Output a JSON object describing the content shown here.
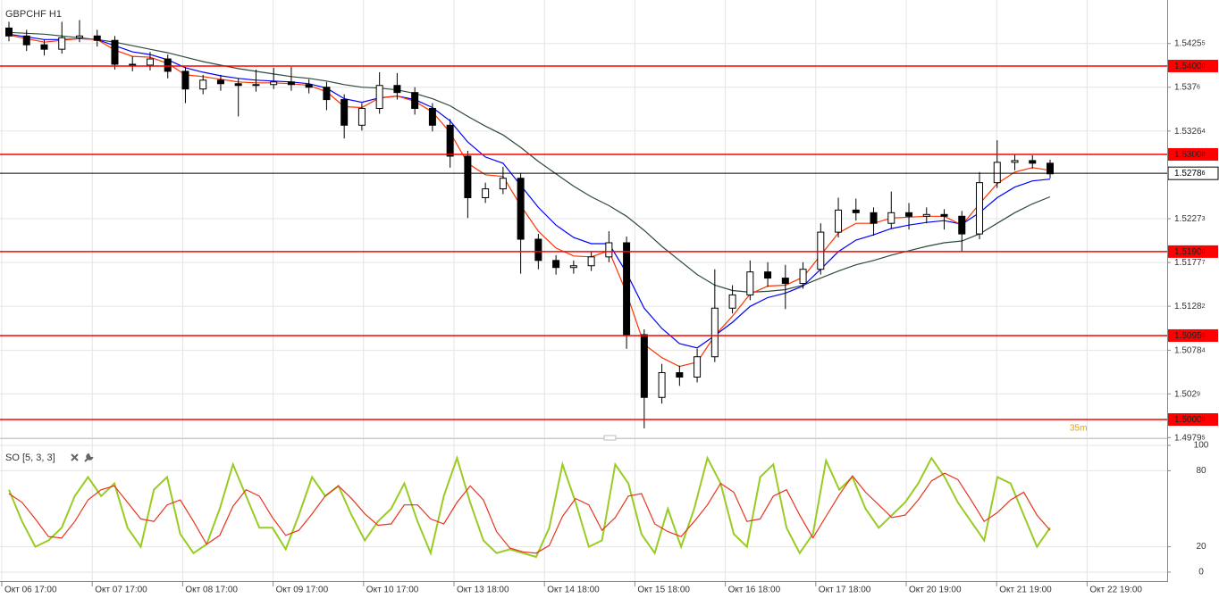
{
  "chart_data": [
    {
      "type": "candlestick",
      "title": "GBPCHF H1",
      "annotation": "35m",
      "open": [
        1.5443,
        1.5434,
        1.5424,
        1.5419,
        1.5432,
        1.5434,
        1.5429,
        1.5402,
        1.5401,
        1.5408,
        1.5394,
        1.5374,
        1.5384,
        1.538,
        1.5378,
        1.5379,
        1.5382,
        1.5379,
        1.5376,
        1.5362,
        1.5333,
        1.5352,
        1.5378,
        1.537,
        1.5352,
        1.5333,
        1.5298,
        1.5251,
        1.5261,
        1.5273,
        1.5204,
        1.518,
        1.5172,
        1.5174,
        1.5184,
        1.52,
        1.5096,
        1.5025,
        1.5053,
        1.5048,
        1.5071,
        1.5126,
        1.5141,
        1.5167,
        1.516,
        1.5154,
        1.517,
        1.5212,
        1.5237,
        1.5234,
        1.5222,
        1.5234,
        1.523,
        1.5232,
        1.523,
        1.521,
        1.5268,
        1.5291,
        1.5293,
        1.529
      ],
      "high": [
        1.545,
        1.5441,
        1.543,
        1.545,
        1.5452,
        1.5441,
        1.5434,
        1.5411,
        1.5416,
        1.5413,
        1.5399,
        1.539,
        1.539,
        1.5386,
        1.5396,
        1.5398,
        1.5399,
        1.5385,
        1.5382,
        1.5368,
        1.5358,
        1.5393,
        1.5392,
        1.5376,
        1.5358,
        1.534,
        1.5304,
        1.5268,
        1.5286,
        1.5279,
        1.521,
        1.5186,
        1.518,
        1.519,
        1.5213,
        1.5207,
        1.5102,
        1.5063,
        1.5061,
        1.508,
        1.517,
        1.5152,
        1.518,
        1.5178,
        1.5175,
        1.5178,
        1.5222,
        1.5251,
        1.525,
        1.524,
        1.5258,
        1.5245,
        1.524,
        1.5238,
        1.5236,
        1.528,
        1.5316,
        1.53,
        1.5299,
        1.5294
      ],
      "low": [
        1.5428,
        1.5417,
        1.5412,
        1.5414,
        1.5427,
        1.5422,
        1.5396,
        1.5394,
        1.5395,
        1.5386,
        1.5358,
        1.5368,
        1.5372,
        1.5343,
        1.5371,
        1.5374,
        1.5372,
        1.5369,
        1.535,
        1.5318,
        1.5327,
        1.5346,
        1.5362,
        1.5345,
        1.5326,
        1.5285,
        1.5228,
        1.5245,
        1.5255,
        1.5165,
        1.517,
        1.5164,
        1.5165,
        1.5168,
        1.5178,
        1.508,
        1.499,
        1.5018,
        1.5038,
        1.5042,
        1.5065,
        1.512,
        1.5135,
        1.515,
        1.5125,
        1.5148,
        1.5164,
        1.5206,
        1.5225,
        1.5208,
        1.5216,
        1.5215,
        1.5222,
        1.5215,
        1.519,
        1.5204,
        1.5262,
        1.5282,
        1.5284,
        1.5273
      ],
      "close": [
        1.5434,
        1.5424,
        1.5419,
        1.5432,
        1.5434,
        1.5429,
        1.5402,
        1.5401,
        1.5408,
        1.5394,
        1.5374,
        1.5384,
        1.538,
        1.5378,
        1.5379,
        1.5382,
        1.5379,
        1.5376,
        1.5362,
        1.5333,
        1.5352,
        1.5378,
        1.537,
        1.5352,
        1.5333,
        1.5298,
        1.5251,
        1.5261,
        1.5273,
        1.5204,
        1.518,
        1.5172,
        1.5174,
        1.5184,
        1.52,
        1.5096,
        1.5025,
        1.5053,
        1.5048,
        1.5071,
        1.5126,
        1.5141,
        1.5167,
        1.516,
        1.5154,
        1.517,
        1.5212,
        1.5237,
        1.5234,
        1.5222,
        1.5234,
        1.523,
        1.5232,
        1.523,
        1.521,
        1.5268,
        1.5291,
        1.5293,
        1.529,
        1.5278
      ],
      "overlays": [
        {
          "color": "#2e4a3c",
          "values": [
            1.5438,
            1.5437,
            1.5436,
            1.5434,
            1.5432,
            1.543,
            1.5427,
            1.5423,
            1.5419,
            1.5415,
            1.541,
            1.5405,
            1.5401,
            1.5397,
            1.5394,
            1.5391,
            1.5388,
            1.5386,
            1.5383,
            1.5379,
            1.5376,
            1.5375,
            1.5373,
            1.5369,
            1.5363,
            1.5355,
            1.5343,
            1.5332,
            1.5322,
            1.5308,
            1.5292,
            1.5278,
            1.5264,
            1.5252,
            1.5242,
            1.523,
            1.5214,
            1.5196,
            1.518,
            1.5164,
            1.5152,
            1.5146,
            1.5144,
            1.5145,
            1.5147,
            1.5152,
            1.516,
            1.5168,
            1.5175,
            1.518,
            1.5186,
            1.5191,
            1.5196,
            1.52,
            1.5202,
            1.521,
            1.5222,
            1.5234,
            1.5244,
            1.5252
          ]
        },
        {
          "color": "#0000ff",
          "values": [
            1.5436,
            1.5433,
            1.543,
            1.543,
            1.5431,
            1.543,
            1.5423,
            1.5416,
            1.5413,
            1.5407,
            1.5398,
            1.5393,
            1.5389,
            1.5386,
            1.5384,
            1.5383,
            1.5382,
            1.538,
            1.5375,
            1.5363,
            1.5359,
            1.5364,
            1.5366,
            1.5362,
            1.5353,
            1.5338,
            1.5314,
            1.5297,
            1.529,
            1.5265,
            1.524,
            1.522,
            1.5206,
            1.5199,
            1.5199,
            1.5166,
            1.5126,
            1.5103,
            1.5086,
            1.5081,
            1.5095,
            1.511,
            1.5128,
            1.5138,
            1.5143,
            1.5151,
            1.517,
            1.519,
            1.5203,
            1.5209,
            1.5216,
            1.522,
            1.5223,
            1.5225,
            1.5221,
            1.5234,
            1.5251,
            1.5263,
            1.527,
            1.5272
          ]
        },
        {
          "color": "#ff3300",
          "values": [
            1.5435,
            1.5431,
            1.5427,
            1.5429,
            1.5431,
            1.543,
            1.5418,
            1.5411,
            1.541,
            1.5403,
            1.539,
            1.5388,
            1.5385,
            1.5382,
            1.5381,
            1.5381,
            1.538,
            1.5378,
            1.5371,
            1.5354,
            1.5353,
            1.5364,
            1.5366,
            1.536,
            1.5348,
            1.5325,
            1.529,
            1.5277,
            1.5275,
            1.5242,
            1.5213,
            1.5194,
            1.5185,
            1.5184,
            1.5191,
            1.5143,
            1.5085,
            1.507,
            1.506,
            1.5065,
            1.5095,
            1.5117,
            1.5142,
            1.5151,
            1.5152,
            1.5161,
            1.5186,
            1.5211,
            1.5222,
            1.5222,
            1.5228,
            1.5229,
            1.523,
            1.523,
            1.522,
            1.5244,
            1.5267,
            1.528,
            1.5285,
            1.5282
          ]
        }
      ],
      "ylim": [
        1.49778,
        1.54747
      ],
      "yticks": [
        1.49795,
        1.5029,
        1.50784,
        1.51282,
        1.51777,
        1.52273,
        1.53264,
        1.5376,
        1.54255
      ],
      "grid": true,
      "levels_color": "#ff0000",
      "levels": [
        {
          "value": 1.54,
          "label": "1.54000"
        },
        {
          "value": 1.53,
          "label": "1.53000"
        },
        {
          "value": 1.519,
          "label": "1.51900"
        },
        {
          "value": 1.5095,
          "label": "1.50950"
        },
        {
          "value": 1.5,
          "label": "1.50000"
        }
      ],
      "last_price": 1.52786,
      "time_labels": [
        "Окт 06 17:00",
        "Окт 07 17:00",
        "Окт 08 17:00",
        "Окт 09 17:00",
        "Окт 10 17:00",
        "Окт 13 18:00",
        "Окт 14 18:00",
        "Окт 15 18:00",
        "Окт 16 18:00",
        "Окт 17 18:00",
        "Окт 20 19:00",
        "Окт 21 19:00",
        "Окт 22 19:00"
      ]
    },
    {
      "type": "stochastic",
      "title": "SO [5, 3, 3]",
      "series": [
        {
          "color": "#99cc22",
          "values": [
            65,
            40,
            20,
            25,
            35,
            60,
            75,
            60,
            70,
            35,
            20,
            65,
            75,
            30,
            15,
            22,
            50,
            85,
            60,
            35,
            35,
            18,
            45,
            75,
            60,
            68,
            45,
            25,
            40,
            50,
            70,
            40,
            15,
            60,
            90,
            55,
            25,
            15,
            18,
            15,
            12,
            35,
            85,
            55,
            20,
            25,
            85,
            70,
            30,
            15,
            50,
            20,
            50,
            90,
            70,
            30,
            20,
            75,
            85,
            35,
            15,
            30,
            88,
            65,
            75,
            50,
            35,
            45,
            55,
            70,
            90,
            75,
            55,
            40,
            25,
            75,
            70,
            45,
            20,
            35
          ]
        },
        {
          "color": "#e8341c",
          "values": [
            62,
            55,
            42,
            28,
            27,
            40,
            57,
            65,
            68,
            55,
            42,
            40,
            53,
            57,
            40,
            22,
            29,
            52,
            65,
            60,
            43,
            29,
            33,
            46,
            60,
            68,
            58,
            46,
            37,
            38,
            53,
            53,
            42,
            38,
            55,
            68,
            57,
            32,
            19,
            16,
            15,
            21,
            44,
            58,
            53,
            33,
            43,
            60,
            62,
            38,
            32,
            28,
            40,
            53,
            70,
            63,
            40,
            42,
            60,
            65,
            45,
            27,
            44,
            61,
            76,
            63,
            53,
            43,
            45,
            57,
            72,
            78,
            73,
            57,
            40,
            47,
            57,
            63,
            45,
            33
          ]
        }
      ],
      "ylim": [
        0,
        100
      ],
      "yticks": [
        0,
        20,
        80,
        100
      ],
      "grid": true
    }
  ]
}
